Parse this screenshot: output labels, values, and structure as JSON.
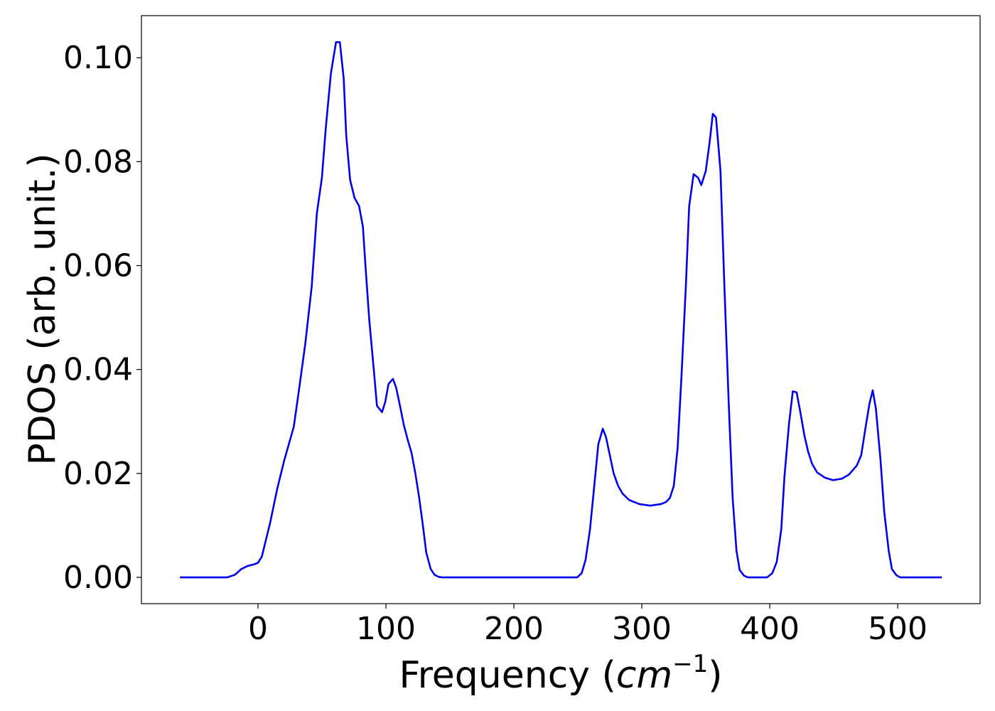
{
  "chart_data": {
    "type": "line",
    "ylabel": "PDOS (arb. unit.)",
    "xlabel": {
      "prefix": "Frequency (",
      "var": "cm",
      "sup": "−1",
      "suffix": ")"
    },
    "xlim": [
      -91.1,
      564.4
    ],
    "ylim": [
      -0.00506,
      0.1081
    ],
    "xticks": [
      0,
      100,
      200,
      300,
      400,
      500
    ],
    "yticks": [
      {
        "value": 0,
        "label": "0.00"
      },
      {
        "value": 0.02,
        "label": "0.02"
      },
      {
        "value": 0.04,
        "label": "0.04"
      },
      {
        "value": 0.06,
        "label": "0.06"
      },
      {
        "value": 0.08,
        "label": "0.08"
      },
      {
        "value": 0.1,
        "label": "0.10"
      }
    ],
    "series": [
      {
        "color": "#0000ee",
        "x": [
          -61,
          -24,
          -18,
          -13,
          -8,
          -3,
          0,
          3,
          5.5,
          9.5,
          15,
          20.5,
          28,
          32,
          37,
          42,
          46,
          50,
          53,
          57,
          61,
          64,
          67,
          69,
          72,
          75.5,
          79,
          82,
          84,
          87,
          90.5,
          93,
          97,
          99.5,
          102,
          105.5,
          108,
          111,
          114,
          117,
          120,
          123,
          126,
          129,
          131.5,
          135,
          138,
          141,
          144,
          249.5,
          253,
          256,
          259.5,
          263,
          266,
          269.5,
          272,
          275,
          278,
          281.5,
          285,
          290,
          298,
          306.5,
          315,
          319,
          322,
          325,
          328,
          331,
          334.5,
          337,
          340.5,
          344,
          346.5,
          350,
          353,
          355.5,
          358,
          361.5,
          364.5,
          368,
          371,
          374,
          376.5,
          380,
          383,
          398,
          402,
          405.5,
          409,
          411.5,
          415,
          418,
          421,
          424,
          427,
          430,
          433,
          437,
          443,
          449.5,
          456.5,
          462,
          468,
          471.5,
          475,
          478,
          480.5,
          483,
          486.5,
          489.5,
          493,
          495.5,
          499,
          502,
          534.5
        ],
        "values": [
          0,
          0,
          0.0005,
          0.0016,
          0.0022,
          0.0025,
          0.0028,
          0.004,
          0.0065,
          0.0105,
          0.017,
          0.0225,
          0.029,
          0.036,
          0.045,
          0.056,
          0.07,
          0.077,
          0.0865,
          0.097,
          0.103,
          0.103,
          0.096,
          0.085,
          0.0765,
          0.073,
          0.0715,
          0.0675,
          0.06,
          0.0495,
          0.04,
          0.033,
          0.0318,
          0.0338,
          0.0372,
          0.0382,
          0.0365,
          0.033,
          0.0293,
          0.0265,
          0.024,
          0.02,
          0.0153,
          0.0098,
          0.0048,
          0.0016,
          0.0005,
          0.0001,
          0,
          0,
          0.0008,
          0.0033,
          0.0092,
          0.018,
          0.0256,
          0.0286,
          0.027,
          0.0235,
          0.02,
          0.0176,
          0.0161,
          0.0149,
          0.0141,
          0.0138,
          0.0141,
          0.0145,
          0.0153,
          0.0176,
          0.0249,
          0.0386,
          0.0564,
          0.0714,
          0.0776,
          0.0769,
          0.0755,
          0.0782,
          0.0837,
          0.0892,
          0.0885,
          0.0782,
          0.0564,
          0.0331,
          0.0153,
          0.0051,
          0.0014,
          0.0003,
          0,
          0,
          0.0008,
          0.003,
          0.0092,
          0.0194,
          0.0294,
          0.0358,
          0.0356,
          0.0317,
          0.0274,
          0.0242,
          0.0219,
          0.0202,
          0.0192,
          0.0187,
          0.019,
          0.0198,
          0.0215,
          0.0235,
          0.029,
          0.0335,
          0.036,
          0.0324,
          0.0228,
          0.0126,
          0.0051,
          0.0016,
          0.0004,
          0,
          0
        ]
      }
    ]
  }
}
